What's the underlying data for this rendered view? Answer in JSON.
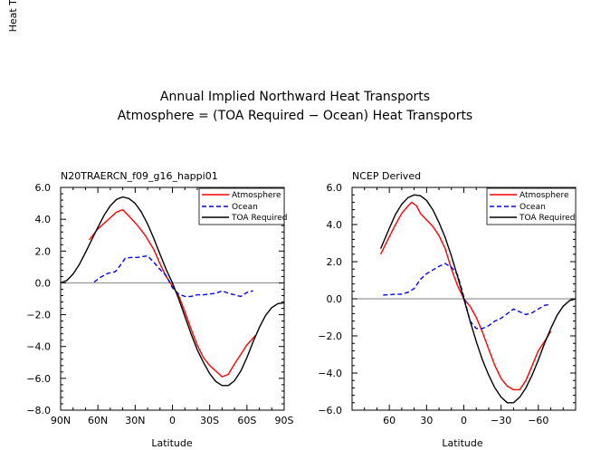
{
  "figure": {
    "title_line1": "Annual Implied Northward Heat Transports",
    "title_line2": "Atmosphere = (TOA Required − Ocean) Heat Transports"
  },
  "colors": {
    "atmosphere": "#ff0000",
    "ocean": "#0000ff",
    "toa": "#000000",
    "zero": "#7f7f7f"
  },
  "chart_data": [
    {
      "type": "line",
      "title": "N20TRAERCN_f09_g16_happi01",
      "xlabel": "Latitude",
      "ylabel": "Heat Transport (PW)",
      "xlim": [
        90,
        -90
      ],
      "ylim": [
        -8,
        6
      ],
      "xticks": [
        90,
        60,
        30,
        0,
        -30,
        -60,
        -90
      ],
      "xticklabels": [
        "90N",
        "60N",
        "30N",
        "0",
        "30S",
        "60S",
        "90S"
      ],
      "yticks": [
        -8,
        -6,
        -4,
        -2,
        0,
        2,
        4,
        6
      ],
      "yticklabels": [
        "−8.0",
        "−6.0",
        "−4.0",
        "−2.0",
        "0.0",
        "2.0",
        "4.0",
        "6.0"
      ],
      "legend_labels": [
        "Atmosphere",
        "Ocean",
        "TOA Required"
      ],
      "series": [
        {
          "name": "Atmosphere",
          "style": "solid",
          "x": [
            67,
            60,
            52,
            45,
            40,
            35,
            28,
            22,
            15,
            10,
            5,
            0,
            -5,
            -10,
            -15,
            -20,
            -25,
            -30,
            -35,
            -40,
            -45,
            -50,
            -55,
            -60,
            -67
          ],
          "y": [
            2.7,
            3.4,
            3.95,
            4.45,
            4.6,
            4.2,
            3.6,
            3.0,
            2.1,
            1.2,
            0.4,
            -0.2,
            -0.8,
            -1.8,
            -2.9,
            -3.9,
            -4.7,
            -5.2,
            -5.55,
            -5.9,
            -5.75,
            -5.1,
            -4.5,
            -3.9,
            -3.3
          ]
        },
        {
          "name": "Ocean",
          "style": "dashed",
          "x": [
            63,
            58,
            52,
            46,
            42,
            38,
            33,
            28,
            20,
            15,
            10,
            5,
            0,
            -5,
            -10,
            -15,
            -20,
            -25,
            -30,
            -35,
            -40,
            -45,
            -50,
            -55,
            -60,
            -65
          ],
          "y": [
            0.05,
            0.35,
            0.6,
            0.7,
            1.1,
            1.55,
            1.6,
            1.6,
            1.7,
            1.3,
            0.85,
            0.45,
            -0.3,
            -0.7,
            -0.85,
            -0.85,
            -0.75,
            -0.75,
            -0.7,
            -0.65,
            -0.5,
            -0.65,
            -0.75,
            -0.85,
            -0.6,
            -0.5
          ]
        },
        {
          "name": "TOA Required",
          "style": "solid",
          "x": [
            90,
            85,
            80,
            75,
            70,
            65,
            60,
            55,
            50,
            45,
            40,
            35,
            30,
            25,
            20,
            15,
            10,
            5,
            0,
            -5,
            -10,
            -15,
            -20,
            -25,
            -30,
            -35,
            -40,
            -45,
            -50,
            -55,
            -60,
            -65,
            -70,
            -75,
            -80,
            -85,
            -90
          ],
          "y": [
            0,
            0.15,
            0.55,
            1.15,
            1.9,
            2.7,
            3.5,
            4.25,
            4.85,
            5.25,
            5.4,
            5.3,
            5.0,
            4.45,
            3.7,
            2.8,
            1.8,
            0.85,
            0,
            -1.0,
            -2.1,
            -3.2,
            -4.2,
            -5.0,
            -5.7,
            -6.2,
            -6.45,
            -6.45,
            -6.15,
            -5.55,
            -4.7,
            -3.7,
            -2.8,
            -2.05,
            -1.55,
            -1.3,
            -1.25
          ]
        }
      ]
    },
    {
      "type": "line",
      "title": "NCEP Derived",
      "xlabel": "Latitude",
      "ylabel": "",
      "xlim": [
        90,
        -90
      ],
      "ylim": [
        -6,
        6
      ],
      "xticks": [
        60,
        30,
        0,
        -30,
        -60
      ],
      "xticklabels": [
        "60",
        "30",
        "0",
        "−30",
        "−60"
      ],
      "yticks": [
        -6,
        -4,
        -2,
        0,
        2,
        4,
        6
      ],
      "yticklabels": [
        "−6.0",
        "−4.0",
        "−2.0",
        "0.0",
        "2.0",
        "4.0",
        "6.0"
      ],
      "legend_labels": [
        "Atmosphere",
        "Ocean",
        "TOA Required"
      ],
      "series": [
        {
          "name": "Atmosphere",
          "style": "solid",
          "x": [
            67,
            60,
            55,
            50,
            45,
            42,
            38,
            35,
            30,
            25,
            20,
            15,
            10,
            5,
            0,
            -5,
            -10,
            -15,
            -20,
            -25,
            -30,
            -35,
            -40,
            -45,
            -50,
            -55,
            -60,
            -65,
            -70
          ],
          "y": [
            2.4,
            3.35,
            4.0,
            4.6,
            5.0,
            5.2,
            5.0,
            4.6,
            4.25,
            3.9,
            3.4,
            2.7,
            1.6,
            0.7,
            0,
            -0.4,
            -1.0,
            -1.8,
            -2.7,
            -3.6,
            -4.3,
            -4.7,
            -4.9,
            -4.9,
            -4.4,
            -3.6,
            -2.8,
            -2.3,
            -1.75
          ]
        },
        {
          "name": "Ocean",
          "style": "dashed",
          "x": [
            65,
            60,
            55,
            50,
            45,
            40,
            35,
            30,
            25,
            20,
            15,
            10,
            5,
            0,
            -5,
            -10,
            -15,
            -20,
            -25,
            -30,
            -35,
            -40,
            -45,
            -50,
            -55,
            -60,
            -65,
            -70
          ],
          "y": [
            0.2,
            0.22,
            0.25,
            0.25,
            0.35,
            0.55,
            1.05,
            1.35,
            1.55,
            1.75,
            1.9,
            1.7,
            1.3,
            0.1,
            -1.2,
            -1.6,
            -1.6,
            -1.45,
            -1.2,
            -1.05,
            -0.8,
            -0.55,
            -0.7,
            -0.85,
            -0.75,
            -0.55,
            -0.35,
            -0.3
          ]
        },
        {
          "name": "TOA Required",
          "style": "solid",
          "x": [
            67,
            60,
            55,
            50,
            45,
            40,
            35,
            30,
            25,
            20,
            15,
            10,
            5,
            0,
            -5,
            -10,
            -15,
            -20,
            -25,
            -30,
            -35,
            -40,
            -45,
            -50,
            -55,
            -60,
            -65,
            -70,
            -75,
            -80,
            -85,
            -90
          ],
          "y": [
            2.7,
            3.8,
            4.55,
            5.1,
            5.45,
            5.6,
            5.55,
            5.3,
            4.8,
            4.1,
            3.3,
            2.3,
            1.2,
            0,
            -1.2,
            -2.3,
            -3.3,
            -4.1,
            -4.8,
            -5.3,
            -5.6,
            -5.6,
            -5.3,
            -4.8,
            -4.1,
            -3.3,
            -2.4,
            -1.6,
            -0.9,
            -0.4,
            -0.1,
            0
          ]
        }
      ]
    }
  ]
}
